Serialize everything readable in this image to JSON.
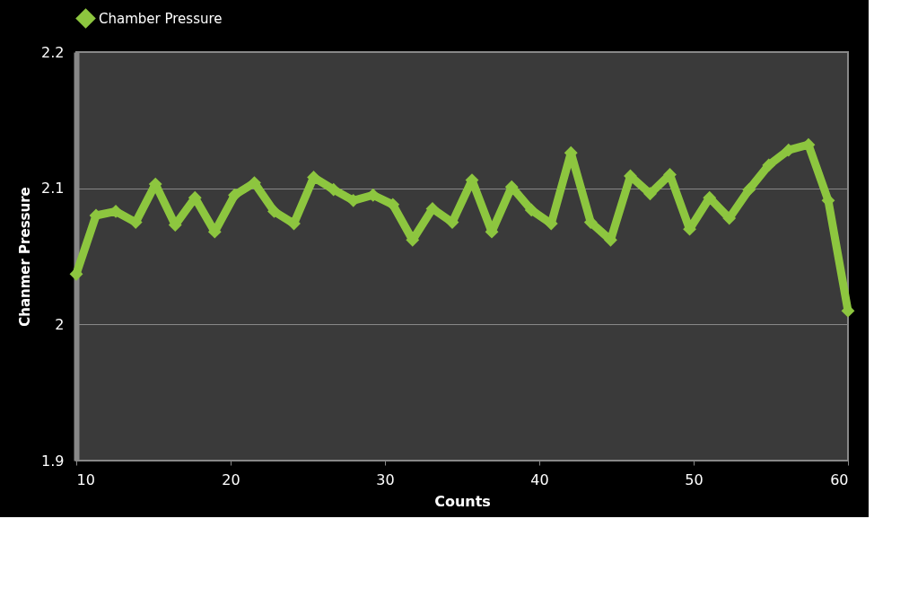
{
  "chart_data": {
    "type": "line",
    "xlabel": "Counts",
    "ylabel": "Chanmer Pressure",
    "x": [
      10,
      11.28,
      12.56,
      13.85,
      15.13,
      16.41,
      17.69,
      18.97,
      20.26,
      21.54,
      22.82,
      24.1,
      25.38,
      26.67,
      27.95,
      29.23,
      30.51,
      31.79,
      33.08,
      34.36,
      35.64,
      36.92,
      38.21,
      39.49,
      40.77,
      42.05,
      43.33,
      44.62,
      45.9,
      47.18,
      48.46,
      49.74,
      51.03,
      52.31,
      53.59,
      54.87,
      56.15,
      57.44,
      58.72,
      60
    ],
    "series": [
      {
        "name": "Chamber Pressure",
        "color": "#8dc63f",
        "values": [
          2.037,
          2.08,
          2.083,
          2.075,
          2.103,
          2.073,
          2.093,
          2.068,
          2.095,
          2.104,
          2.083,
          2.074,
          2.108,
          2.099,
          2.091,
          2.095,
          2.088,
          2.062,
          2.085,
          2.075,
          2.106,
          2.068,
          2.101,
          2.084,
          2.074,
          2.126,
          2.075,
          2.062,
          2.109,
          2.096,
          2.11,
          2.07,
          2.093,
          2.078,
          2.099,
          2.117,
          2.128,
          2.132,
          2.091,
          2.01
        ]
      }
    ],
    "xlim": [
      10,
      60
    ],
    "xticks": [
      10,
      20,
      30,
      40,
      50,
      60
    ],
    "ylim": [
      1.9,
      2.2
    ],
    "yticks": [
      1.9,
      2,
      2.1,
      2.2
    ],
    "grid": "y",
    "legend": "top left",
    "marker": "diamond",
    "line_style": "solid"
  }
}
